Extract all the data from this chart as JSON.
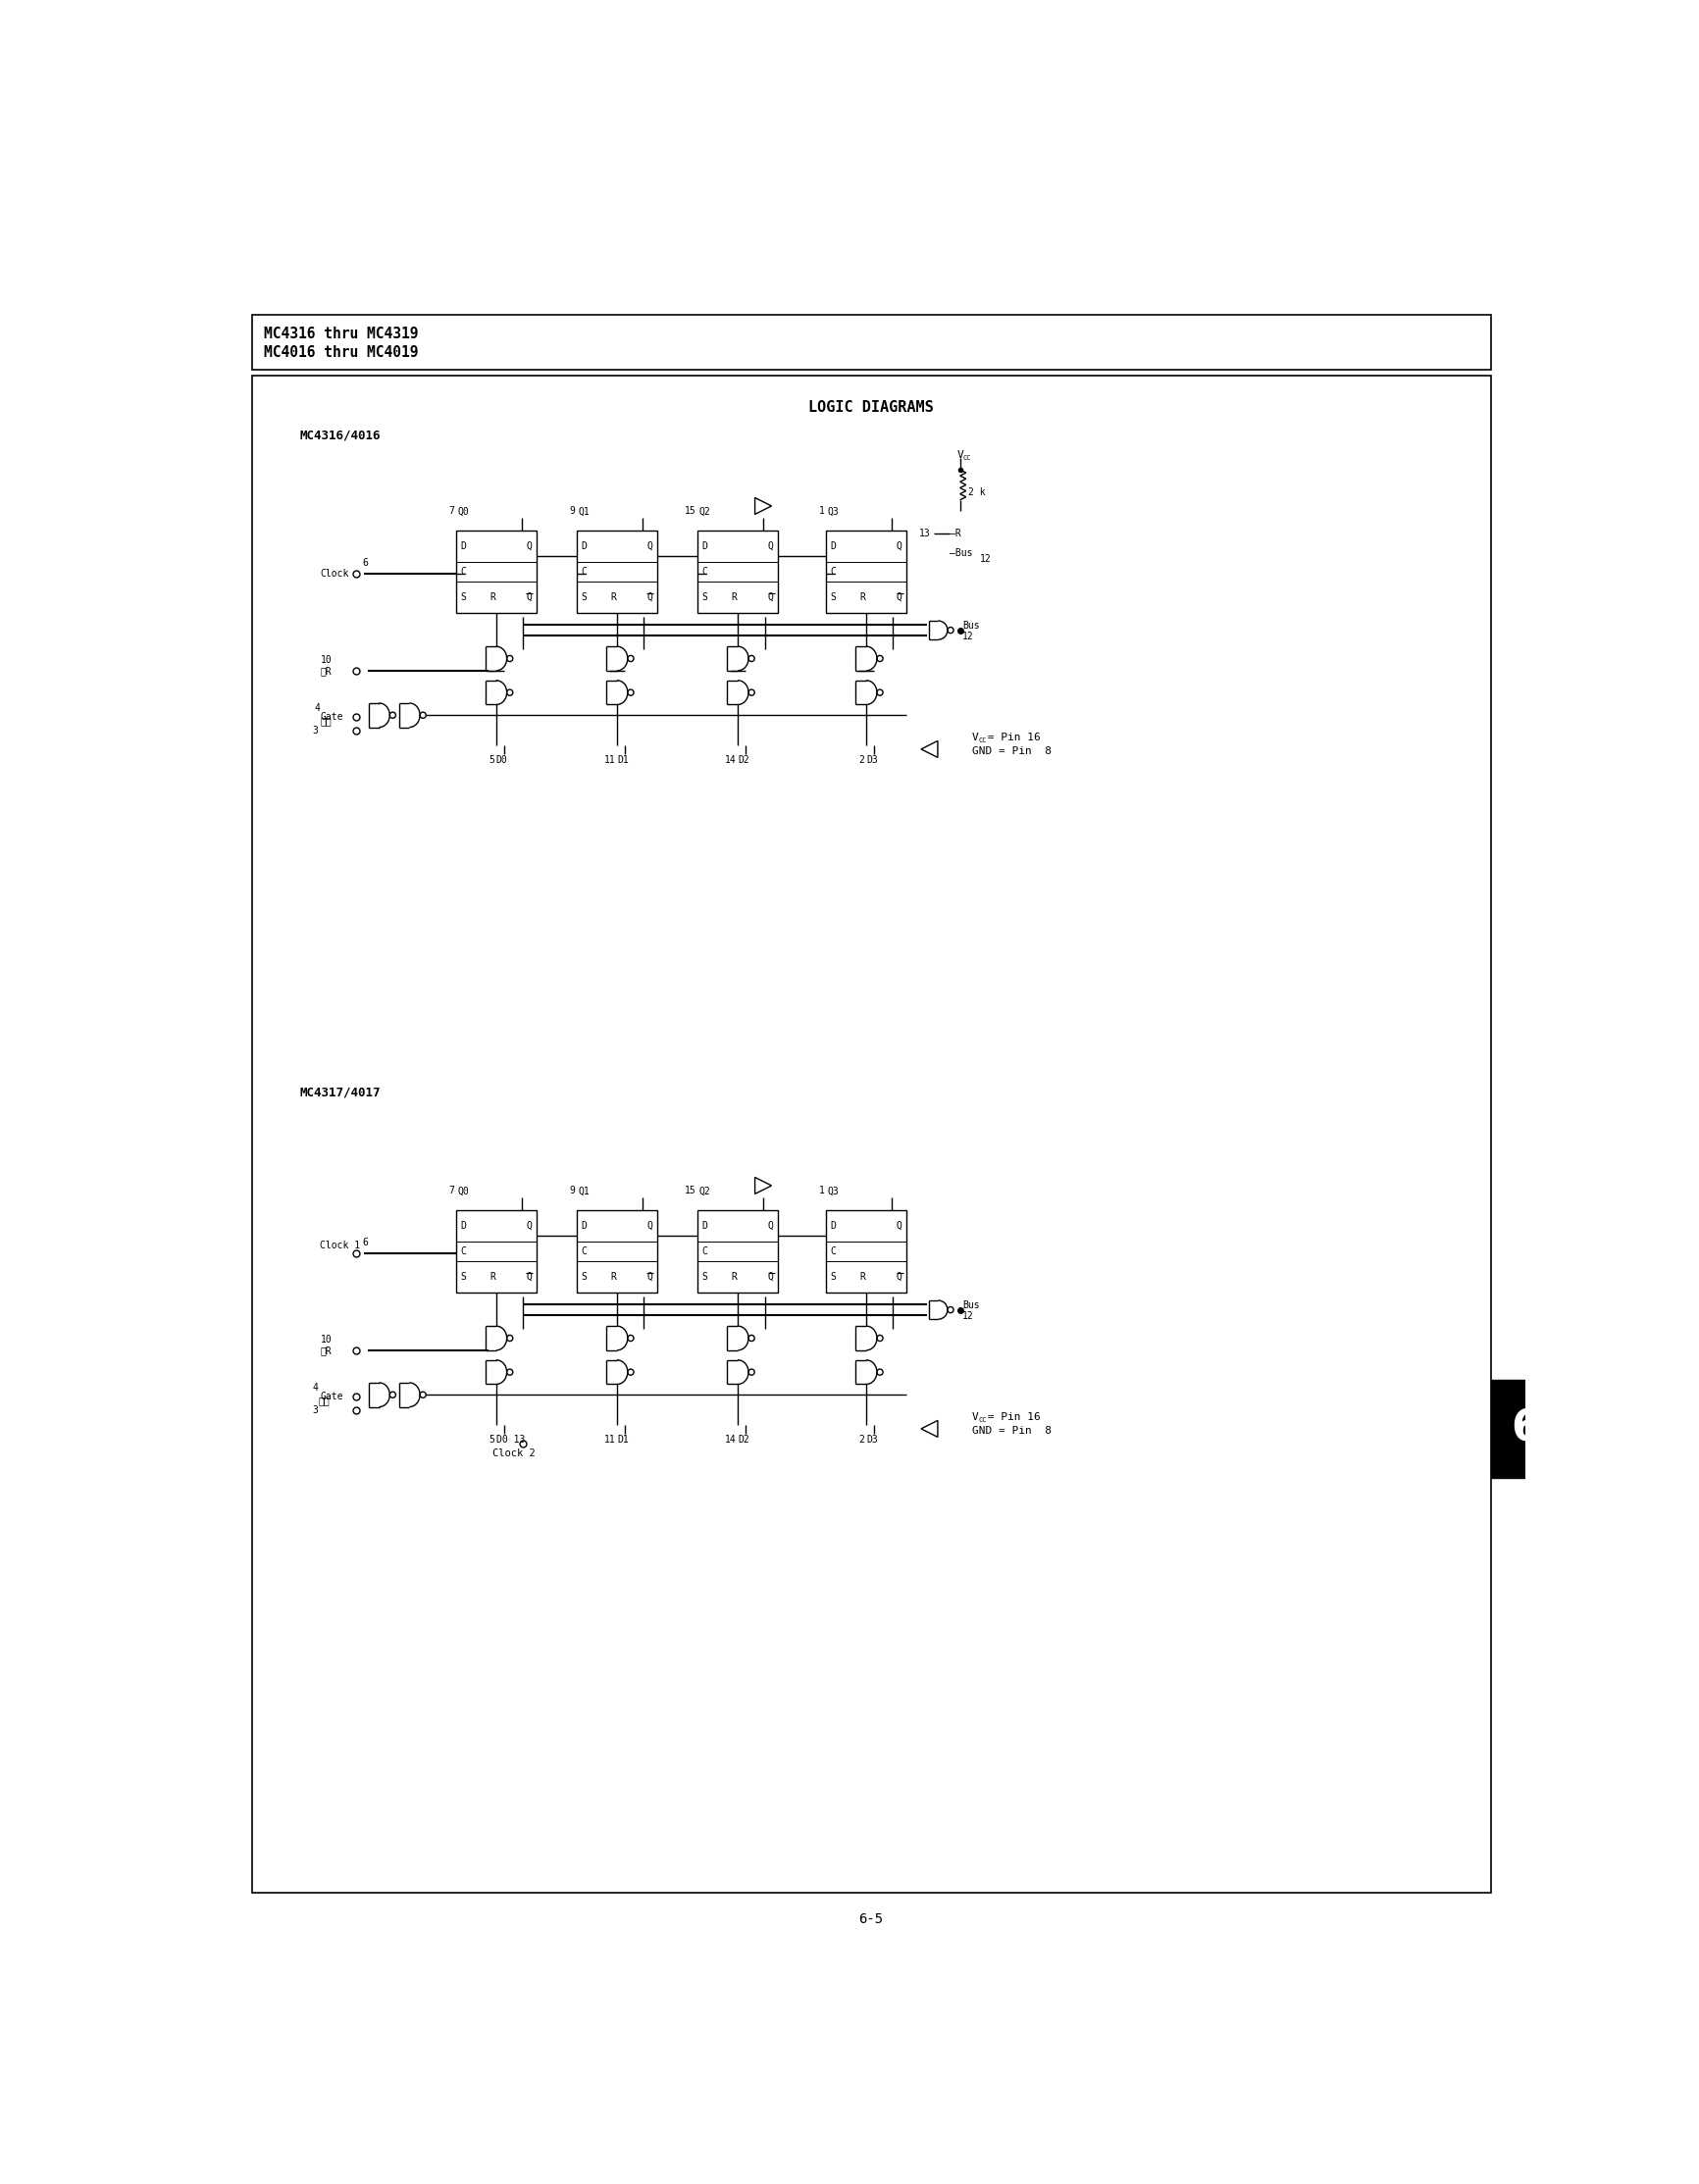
{
  "page_background": "#ffffff",
  "header_text_line1": "MC4316 thru MC4319",
  "header_text_line2": "MC4016 thru MC4019",
  "main_title": "LOGIC DIAGRAMS",
  "diagram1_title": "MC4316/4016",
  "diagram2_title": "MC4317/4017",
  "footer_text": "6-5",
  "tab_label": "6",
  "line_color": "#000000",
  "text_color": "#000000",
  "background_color": "#ffffff",
  "ff_pins_top": [
    [
      "7",
      "Q0"
    ],
    [
      "9",
      "Q1"
    ],
    [
      "15",
      "Q2"
    ],
    [
      "1",
      "Q3"
    ]
  ],
  "ff_pins_bot1": [
    [
      "5",
      "D0"
    ],
    [
      "11",
      "D1"
    ],
    [
      "14",
      "D2"
    ],
    [
      "2",
      "D3"
    ]
  ],
  "ff_pins_bot2": [
    [
      "5",
      "D0 13"
    ],
    [
      "11",
      "D1"
    ],
    [
      "14",
      "D2"
    ],
    [
      "2",
      "D3"
    ]
  ]
}
